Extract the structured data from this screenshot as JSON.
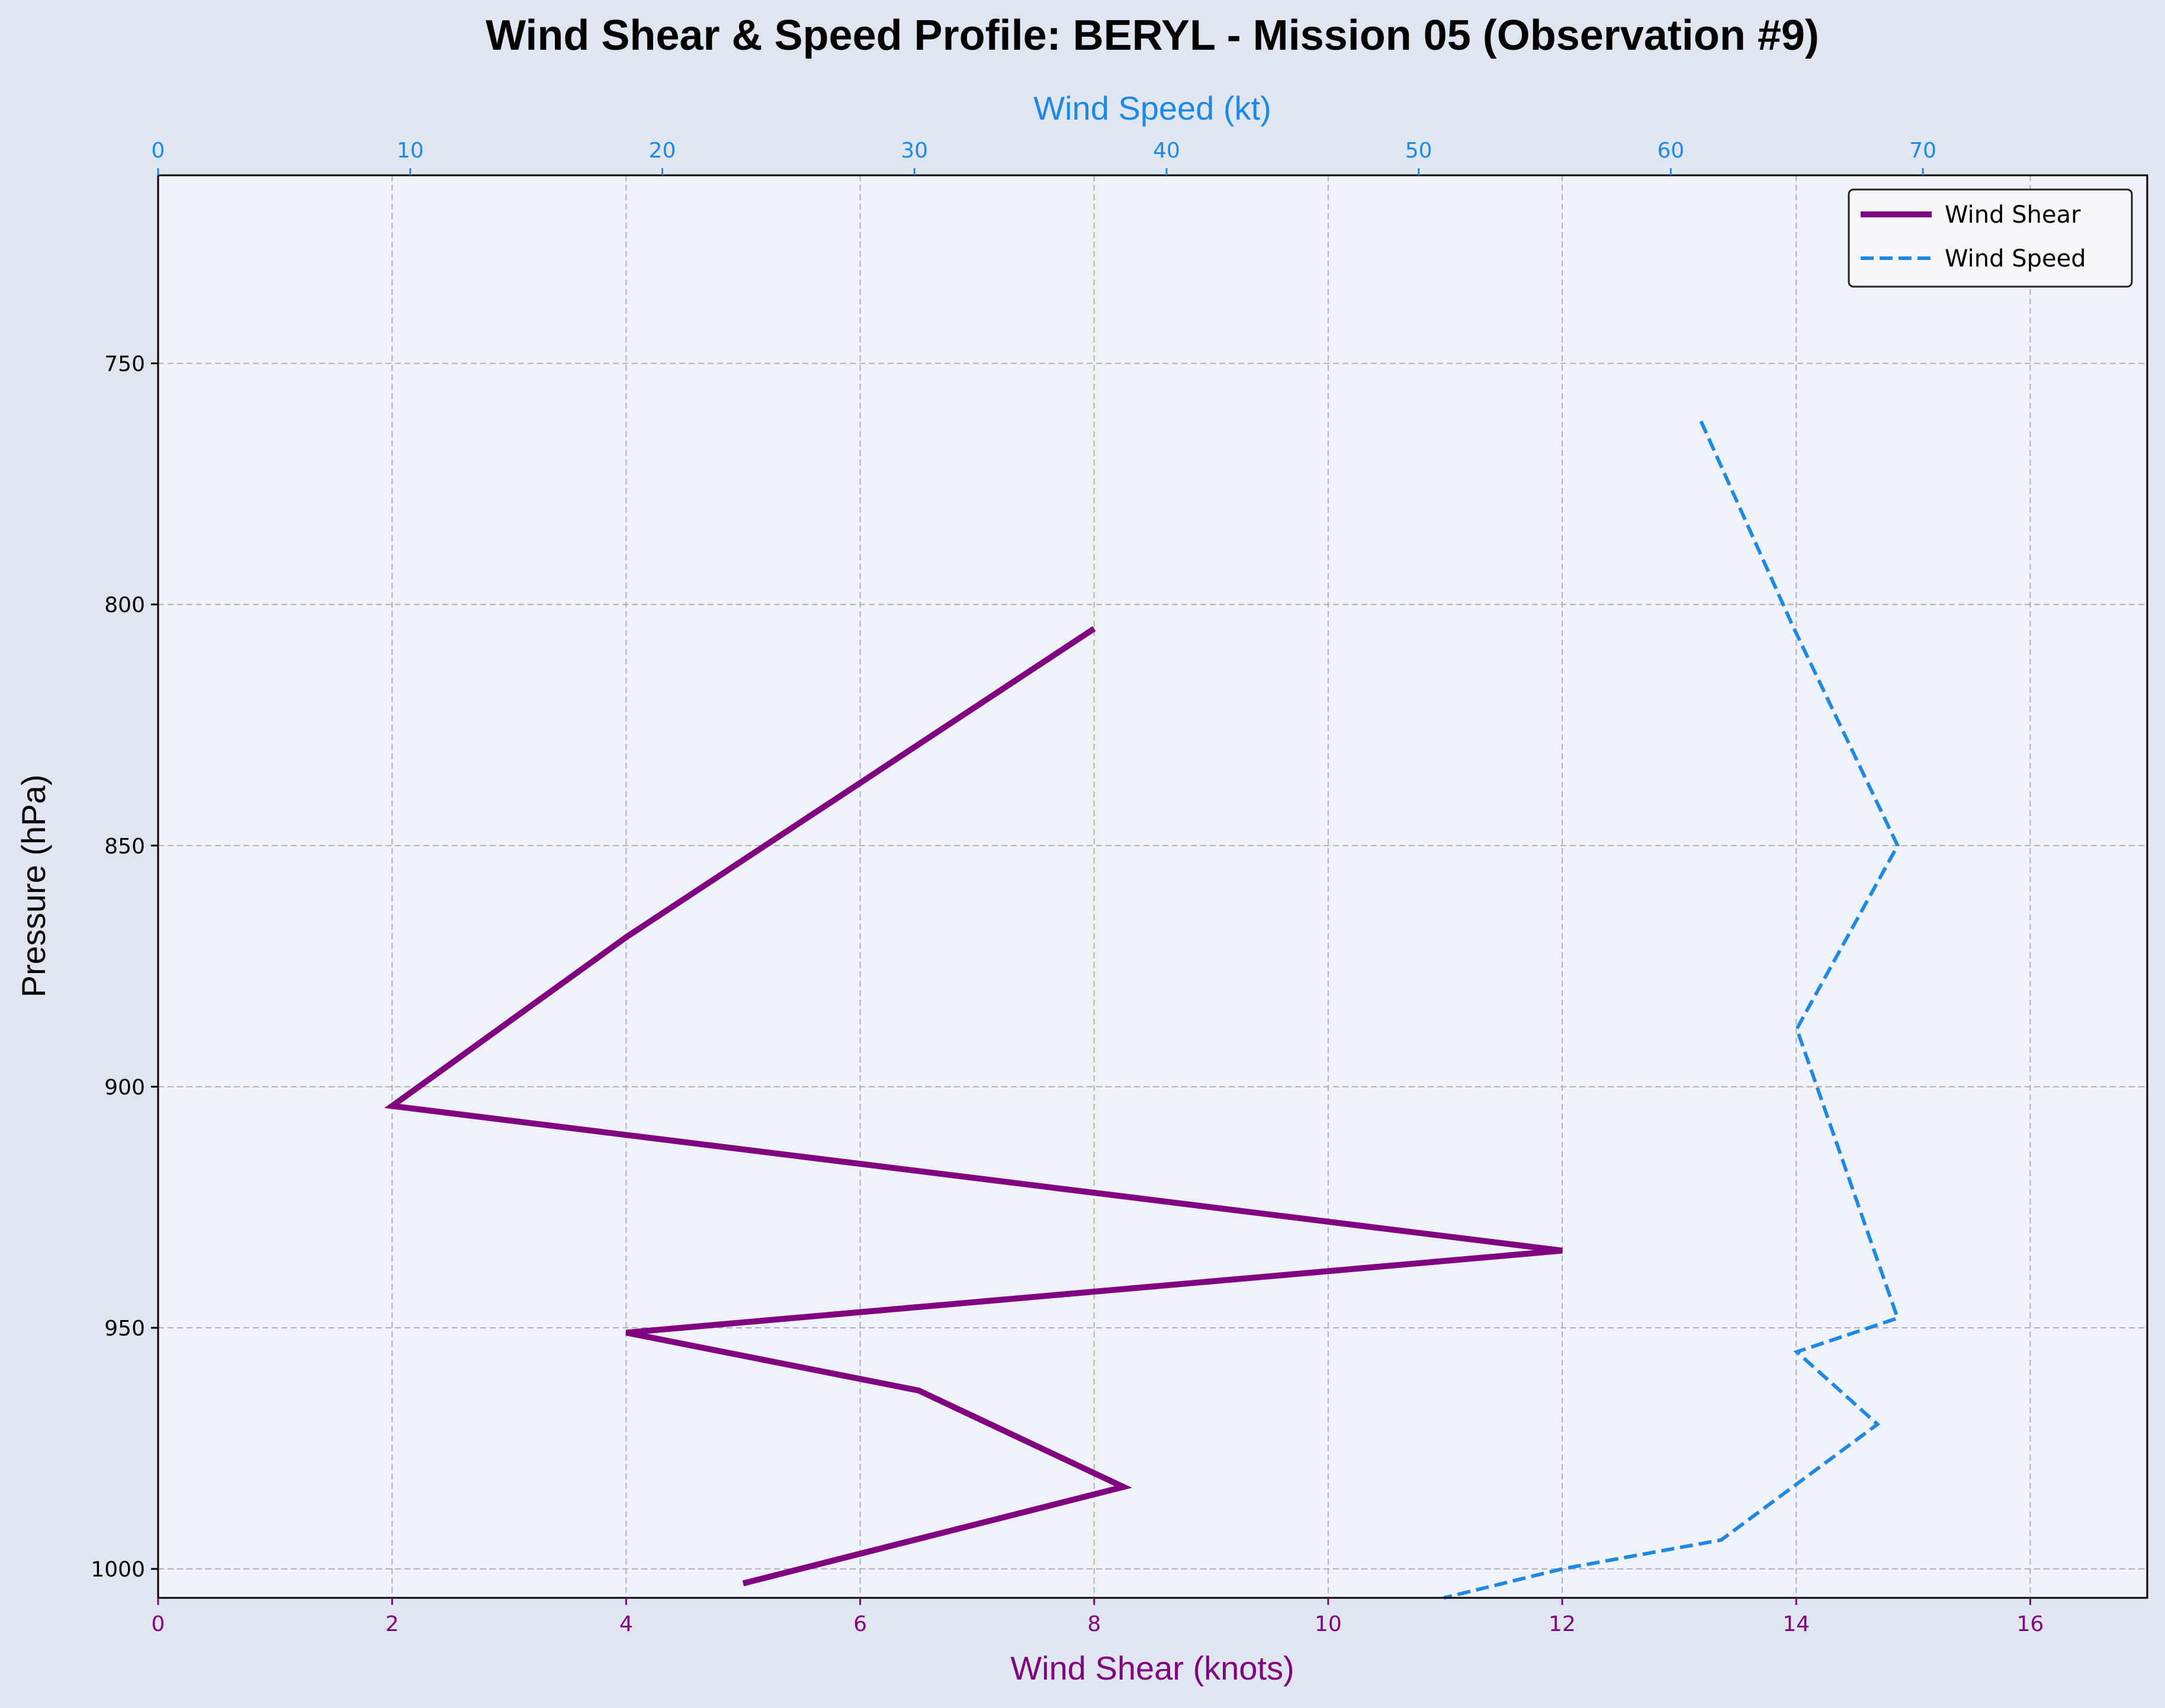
{
  "chart_data": {
    "type": "line",
    "title": "Wind Shear & Speed Profile: BERYL - Mission 05 (Observation #9)",
    "ylabel": "Pressure (hPa)",
    "y_inverted": true,
    "ylim": [
      1006,
      711
    ],
    "yticks": [
      750,
      800,
      850,
      900,
      950,
      1000
    ],
    "bottom_axis": {
      "label": "Wind Shear (knots)",
      "xlim": [
        0,
        17
      ],
      "ticks": [
        0,
        2,
        4,
        6,
        8,
        10,
        12,
        14,
        16
      ],
      "color": "#800080"
    },
    "top_axis": {
      "label": "Wind Speed (kt)",
      "xlim": [
        0,
        78.9
      ],
      "ticks": [
        0,
        10,
        20,
        30,
        40,
        50,
        60,
        70
      ],
      "color": "#1e88e5"
    },
    "grid": true,
    "legend_position": "top-right",
    "series": [
      {
        "name": "Wind Shear",
        "axis": "bottom",
        "color": "#800080",
        "style": "solid",
        "points": [
          {
            "x": 8.0,
            "y": 805
          },
          {
            "x": 4.0,
            "y": 869
          },
          {
            "x": 2.0,
            "y": 904
          },
          {
            "x": 12.0,
            "y": 934
          },
          {
            "x": 4.0,
            "y": 951
          },
          {
            "x": 6.5,
            "y": 963
          },
          {
            "x": 8.25,
            "y": 983
          },
          {
            "x": 5.0,
            "y": 1003
          }
        ]
      },
      {
        "name": "Wind Speed",
        "axis": "top",
        "color": "#1e88e5",
        "style": "dashed",
        "points": [
          {
            "x": 61.2,
            "y": 762
          },
          {
            "x": 64.8,
            "y": 804
          },
          {
            "x": 69.0,
            "y": 850
          },
          {
            "x": 65.0,
            "y": 888
          },
          {
            "x": 69.0,
            "y": 948
          },
          {
            "x": 65.0,
            "y": 955
          },
          {
            "x": 68.2,
            "y": 970
          },
          {
            "x": 62.0,
            "y": 994
          },
          {
            "x": 55.7,
            "y": 1000
          },
          {
            "x": 51.0,
            "y": 1006
          }
        ]
      }
    ]
  },
  "colors": {
    "figure_bg": "#e0e6f0",
    "plot_bg": "#eff2f8",
    "grid": "#b0b0b0"
  }
}
